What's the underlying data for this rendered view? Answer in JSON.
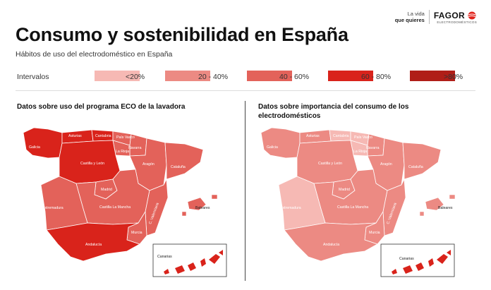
{
  "title": "Consumo y sostenibilidad en España",
  "subtitle": "Hábitos de uso del electrodoméstico en España",
  "brand": {
    "tagline_line1": "La vida",
    "tagline_line2": "que quieres",
    "name": "FAGOR",
    "sub": "ELECTRODOMÉSTICOS",
    "accent_color": "#e1241d"
  },
  "legend": {
    "label": "Intervalos",
    "items": [
      {
        "label": "<20%",
        "color": "#f6b9b4"
      },
      {
        "label": "20 - 40%",
        "color": "#ec8a83"
      },
      {
        "label": "40 - 60%",
        "color": "#e3625a"
      },
      {
        "label": "60 - 80%",
        "color": "#d9231b"
      },
      {
        "label": ">80%",
        "color": "#b01e18"
      }
    ]
  },
  "maps": [
    {
      "title": "Datos sobre uso del programa ECO de la lavadora",
      "region_bins": {
        "galicia": "60 - 80%",
        "asturias": "60 - 80%",
        "cantabria": "60 - 80%",
        "pais_vasco": "40 - 60%",
        "navarra": "40 - 60%",
        "la_rioja": "40 - 60%",
        "castilla_leon": "60 - 80%",
        "aragon": "40 - 60%",
        "cataluna": "40 - 60%",
        "madrid": "40 - 60%",
        "castilla_la_mancha": "40 - 60%",
        "extremadura": "40 - 60%",
        "c_valenciana": "40 - 60%",
        "murcia": "40 - 60%",
        "andalucia": "60 - 80%",
        "baleares": "40 - 60%",
        "canarias": "60 - 80%"
      }
    },
    {
      "title": "Datos sobre importancia del consumo de los electrodomésticos",
      "region_bins": {
        "galicia": "20 - 40%",
        "asturias": "20 - 40%",
        "cantabria": "<20%",
        "pais_vasco": "<20%",
        "navarra": "20 - 40%",
        "la_rioja": "<20%",
        "castilla_leon": "20 - 40%",
        "aragon": "20 - 40%",
        "cataluna": "20 - 40%",
        "madrid": "20 - 40%",
        "castilla_la_mancha": "20 - 40%",
        "extremadura": "<20%",
        "c_valenciana": "20 - 40%",
        "murcia": "20 - 40%",
        "andalucia": "20 - 40%",
        "baleares": "20 - 40%",
        "canarias": "60 - 80%"
      }
    }
  ],
  "regions": {
    "galicia": "Galicia",
    "asturias": "Asturias",
    "cantabria": "Cantabria",
    "pais_vasco": "País Vasco",
    "navarra": "Navarra",
    "la_rioja": "La Rioja",
    "castilla_leon": "Castilla y León",
    "aragon": "Aragón",
    "cataluna": "Cataluña",
    "madrid": "Madrid",
    "castilla_la_mancha": "Castilla La Mancha",
    "extremadura": "Extremadura",
    "c_valenciana": "C. Valenciana",
    "murcia": "Murcia",
    "andalucia": "Andalucía",
    "baleares": "Baleares",
    "canarias": "Canarias"
  }
}
